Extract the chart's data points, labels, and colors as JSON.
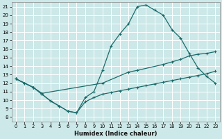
{
  "xlabel": "Humidex (Indice chaleur)",
  "bg_color": "#cce8e8",
  "grid_color": "#ffffff",
  "line_color": "#1a6b6b",
  "xlim": [
    -0.5,
    23.5
  ],
  "ylim": [
    7.5,
    21.5
  ],
  "xticks": [
    0,
    1,
    2,
    3,
    4,
    5,
    6,
    7,
    8,
    9,
    10,
    11,
    12,
    13,
    14,
    15,
    16,
    17,
    18,
    19,
    20,
    21,
    22,
    23
  ],
  "yticks": [
    8,
    9,
    10,
    11,
    12,
    13,
    14,
    15,
    16,
    17,
    18,
    19,
    20,
    21
  ],
  "line1_x": [
    0,
    1,
    2,
    3,
    4,
    5,
    6,
    7,
    8,
    9,
    10,
    11,
    12,
    13,
    14,
    15,
    16,
    17,
    18,
    19,
    20,
    21,
    22,
    23
  ],
  "line1_y": [
    12.5,
    12.0,
    11.5,
    10.7,
    9.9,
    9.3,
    8.7,
    8.5,
    10.3,
    11.0,
    13.5,
    16.4,
    17.8,
    19.0,
    21.0,
    21.2,
    20.6,
    20.0,
    18.3,
    17.3,
    15.5,
    13.8,
    12.8,
    12.0
  ],
  "line2_x": [
    0,
    2,
    3,
    10,
    13,
    14,
    17,
    18,
    19,
    20,
    21,
    22,
    23
  ],
  "line2_y": [
    12.5,
    11.5,
    10.8,
    12.0,
    13.3,
    13.5,
    14.2,
    14.5,
    14.8,
    15.2,
    15.4,
    15.5,
    15.7
  ],
  "line3_x": [
    0,
    1,
    2,
    3,
    4,
    5,
    6,
    7,
    8,
    9,
    10,
    11,
    12,
    13,
    14,
    15,
    16,
    17,
    18,
    19,
    20,
    21,
    22,
    23
  ],
  "line3_y": [
    12.5,
    12.0,
    11.5,
    10.7,
    9.9,
    9.3,
    8.7,
    8.5,
    9.8,
    10.3,
    10.7,
    10.9,
    11.1,
    11.3,
    11.5,
    11.7,
    11.9,
    12.1,
    12.3,
    12.5,
    12.7,
    12.9,
    13.1,
    13.4
  ]
}
